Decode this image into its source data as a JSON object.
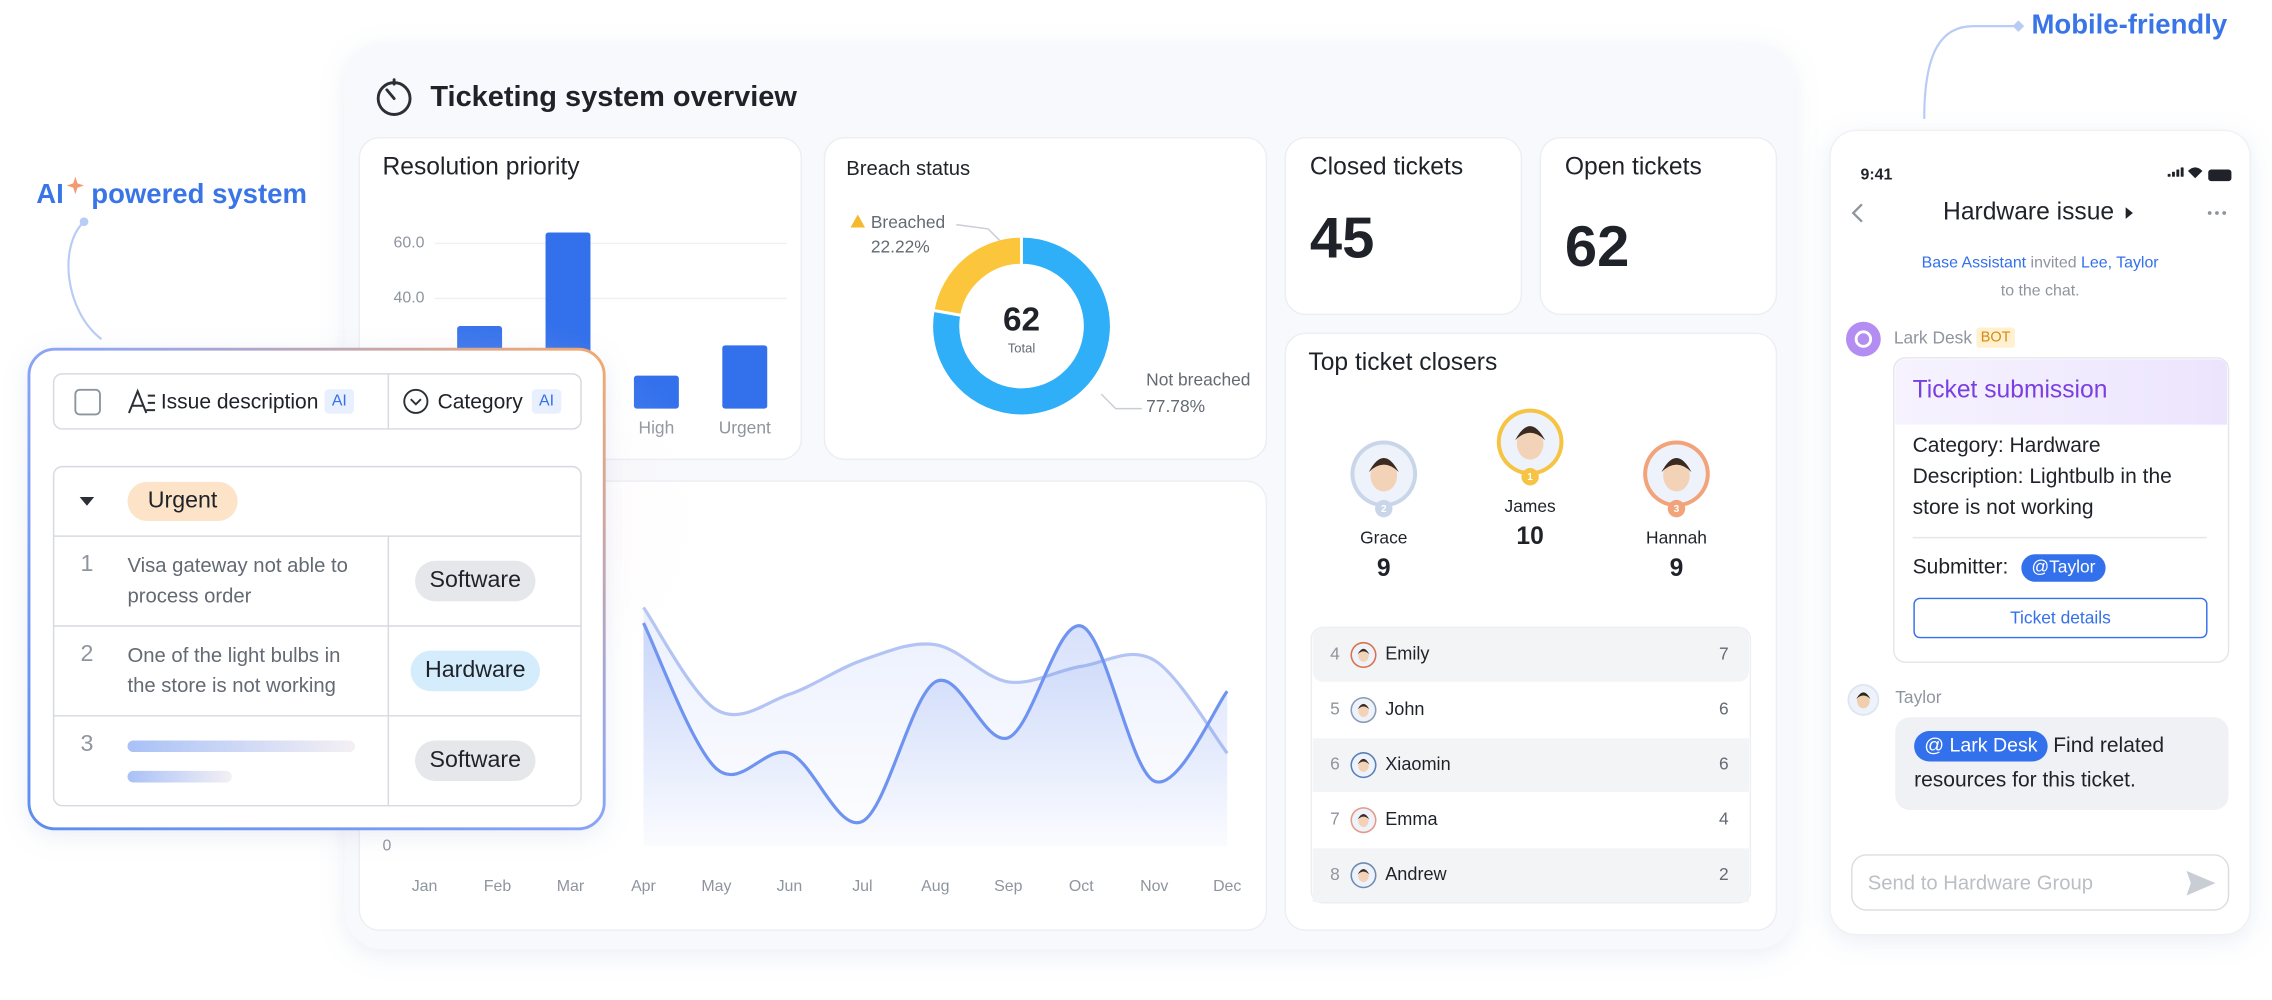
{
  "callouts": {
    "ai_badge": "AI",
    "ai_caption": "powered system",
    "mobile": "Mobile-friendly"
  },
  "dashboard_title": "Ticketing system overview",
  "chart_data": [
    {
      "type": "bar",
      "title": "Resolution priority",
      "categories": [
        null,
        null,
        "High",
        "Urgent"
      ],
      "values": [
        30,
        64,
        12,
        23
      ],
      "color": "#3370eb",
      "ylim": [
        0,
        70
      ],
      "yticks": [
        {
          "value": 60,
          "label": "60.0"
        },
        {
          "value": 40,
          "label": "40.0"
        }
      ],
      "grid": true
    },
    {
      "type": "pie",
      "title": "Breach status",
      "categories": [
        "Breached",
        "Not breached"
      ],
      "values": [
        22.22,
        77.78
      ],
      "value_labels": [
        "22.22%",
        "77.78%"
      ],
      "colors": [
        "#fbc63b",
        "#2eaff8"
      ],
      "total": 62,
      "total_label": "Total"
    },
    {
      "type": "line",
      "categories": [
        "Jan",
        "Feb",
        "Mar",
        "Apr",
        "May",
        "Jun",
        "Jul",
        "Aug",
        "Sep",
        "Oct",
        "Nov",
        "Dec"
      ],
      "series": [
        {
          "color": "#6f93f0",
          "values": [
            null,
            null,
            null,
            72,
            25,
            30,
            8,
            53,
            35,
            71,
            21,
            50
          ]
        },
        {
          "color": "#b3c4f4",
          "values": [
            null,
            null,
            null,
            77,
            44,
            49,
            60,
            65,
            53,
            58,
            60,
            30
          ]
        }
      ],
      "ylim": [
        0,
        100
      ],
      "yticks": [
        0
      ]
    }
  ],
  "stats": [
    {
      "label": "Closed tickets",
      "value": 45
    },
    {
      "label": "Open tickets",
      "value": 62
    }
  ],
  "top_closers": {
    "title": "Top ticket closers",
    "podium": [
      {
        "name": "Grace",
        "rank": 2,
        "count": 9
      },
      {
        "name": "James",
        "rank": 1,
        "count": 10
      },
      {
        "name": "Hannah",
        "rank": 3,
        "count": 9
      }
    ],
    "list": [
      {
        "rank": 4,
        "name": "Emily",
        "count": 7
      },
      {
        "rank": 5,
        "name": "John",
        "count": 6
      },
      {
        "rank": 6,
        "name": "Xiaomin",
        "count": 6
      },
      {
        "rank": 7,
        "name": "Emma",
        "count": 4
      },
      {
        "rank": 8,
        "name": "Andrew",
        "count": 2
      }
    ]
  },
  "issue_table": {
    "header": {
      "description": "Issue description",
      "description_tag": "AI",
      "category": "Category",
      "category_tag": "AI"
    },
    "group": "Urgent",
    "rows": [
      {
        "number": 1,
        "description": [
          "Visa gateway not able to",
          "process order"
        ],
        "category": "Software"
      },
      {
        "number": 2,
        "description": [
          "One of the light bulbs in",
          "the store is not working"
        ],
        "category": "Hardware"
      },
      {
        "number": 3,
        "category": "Software"
      }
    ]
  },
  "mobile": {
    "time": "9:41",
    "title": "Hardware issue",
    "invite": {
      "actor": "Base Assistant",
      "verb": "invited",
      "invitees": "Lee, Taylor",
      "rest": "to the chat."
    },
    "bot": {
      "name": "Lark Desk",
      "tag": "BOT",
      "card_title": "Ticket submission",
      "lines": [
        "Category: Hardware",
        "Description: Lightbulb in the",
        "store is not working"
      ],
      "submitter_label": "Submitter:",
      "submitter": "@Taylor",
      "button": "Ticket details"
    },
    "reply": {
      "name": "Taylor",
      "mention": "@ Lark Desk",
      "lines": [
        "Find related",
        "resources for this ticket."
      ]
    },
    "input_placeholder": "Send to Hardware Group"
  }
}
